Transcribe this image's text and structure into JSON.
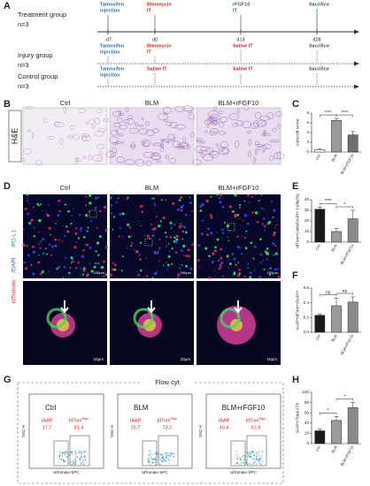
{
  "panel_labels": [
    "A",
    "B",
    "C",
    "D",
    "E",
    "F",
    "G",
    "H"
  ],
  "timeline": {
    "days": [
      "-d7",
      "d0",
      "d14",
      "d28"
    ],
    "groups": [
      {
        "name": "Treatment group",
        "n": "n=3",
        "events": [
          {
            "lines": [
              "Tamoxifen",
              "injection"
            ],
            "color": "#2f6ea8"
          },
          {
            "lines": [
              "Bleomycin",
              "IT"
            ],
            "color": "#b5322b"
          },
          {
            "lines": [
              "rFGF10",
              "IT"
            ],
            "color": "#2f6b4f"
          },
          {
            "lines": [
              "Sacrifice"
            ],
            "color": "#2f5e66"
          }
        ]
      },
      {
        "name": "Injury group",
        "n": "n=3",
        "events": [
          {
            "lines": [
              "Tamoxifen",
              "injection"
            ],
            "color": "#2f6ea8"
          },
          {
            "lines": [
              "Bleomycin",
              "IT"
            ],
            "color": "#b5322b"
          },
          {
            "lines": [
              "Saline IT"
            ],
            "color": "#b5322b"
          },
          {
            "lines": [
              "Sacrifice"
            ],
            "color": "#2f5e66"
          }
        ]
      },
      {
        "name": "Control group",
        "n": "n=3",
        "events": [
          {
            "lines": [
              "Tamoxifen",
              "injection"
            ],
            "color": "#2f6ea8"
          },
          {
            "lines": [
              "Saline IT"
            ],
            "color": "#b5322b"
          },
          {
            "lines": [
              "Saline IT"
            ],
            "color": "#b5322b"
          },
          {
            "lines": [
              "Sacrifice"
            ],
            "color": "#2f5e66"
          }
        ]
      }
    ]
  },
  "images": {
    "columns": [
      "Ctrl",
      "BLM",
      "BLM+rFGF10"
    ],
    "he_label": "H&E",
    "if_label": [
      "tdTomato",
      "/DAPI",
      "/PD-L1"
    ],
    "scale_low": "100μm",
    "scale_high": "10μm"
  },
  "flow": {
    "title": "Flow cyt.",
    "y_axis": "SSC-H",
    "x_axis": "tdTomato-SPC",
    "plots": [
      {
        "name": "Ctrl",
        "gates": [
          {
            "label": "IAAP",
            "value": "17.7"
          },
          {
            "label": "tdTom",
            "sup": "High",
            "value": "81.4"
          }
        ]
      },
      {
        "name": "BLM",
        "gates": [
          {
            "label": "IAAP",
            "value": "25.7"
          },
          {
            "label": "tdTom",
            "sup": "High",
            "value": "73.2"
          }
        ]
      },
      {
        "name": "BLM+rFGF10",
        "gates": [
          {
            "label": "IAAP",
            "value": "40.4"
          },
          {
            "label": "tdTom",
            "sup": "High",
            "value": "57.9"
          }
        ]
      }
    ]
  },
  "chart_data": [
    {
      "type": "bar",
      "y_label": "Ashcroft score",
      "categories": [
        "Ctrl",
        "BLM",
        "BLM+rFGF10"
      ],
      "values": [
        0.5,
        6.5,
        3.5
      ],
      "errors": [
        0.2,
        0.4,
        0.7
      ],
      "colors": [
        "#ffffff",
        "#9a9a9a",
        "#6e6e6e"
      ],
      "ylim": [
        0,
        8
      ],
      "yticks": [
        0,
        2,
        4,
        6,
        8
      ],
      "significance": [
        "****",
        "****"
      ]
    },
    {
      "type": "bar",
      "y_label": "tdTom+Cells/DAPI+ Cells(%)",
      "categories": [
        "Ctrl",
        "BLM",
        "BLM+rFGF10"
      ],
      "values": [
        31,
        10,
        22
      ],
      "errors": [
        2,
        3,
        8
      ],
      "colors": [
        "#1a1a1a",
        "#9a9a9a",
        "#8a8a8a"
      ],
      "ylim": [
        0,
        40
      ],
      "yticks": [
        0,
        10,
        20,
        30,
        40
      ],
      "significance": [
        "****",
        "*"
      ]
    },
    {
      "type": "bar",
      "y_label": "IAAP+tdTom+/DAPI+",
      "categories": [
        "Ctrl",
        "BLM",
        "BLM+rFGF10"
      ],
      "values": [
        0.23,
        0.36,
        0.41
      ],
      "errors": [
        0.02,
        0.1,
        0.07
      ],
      "colors": [
        "#1a1a1a",
        "#9a9a9a",
        "#8a8a8a"
      ],
      "ylim": [
        0,
        0.6
      ],
      "yticks": [
        {
          "value": 0,
          "label": "0.0"
        },
        0.2,
        0.4,
        0.6
      ],
      "significance": [
        "ns",
        "ns"
      ]
    },
    {
      "type": "bar",
      "y_label": "IAAP+/Total ATII",
      "categories": [
        "Ctrl",
        "BLM",
        "BLM+rFGF10"
      ],
      "values": [
        25,
        45,
        70
      ],
      "errors": [
        3,
        8,
        10
      ],
      "colors": [
        "#1a1a1a",
        "#9a9a9a",
        "#8a8a8a"
      ],
      "ylim": [
        0,
        100
      ],
      "yticks": [
        0,
        20,
        40,
        60,
        80,
        100
      ],
      "significance": [
        "*",
        "*"
      ]
    }
  ]
}
